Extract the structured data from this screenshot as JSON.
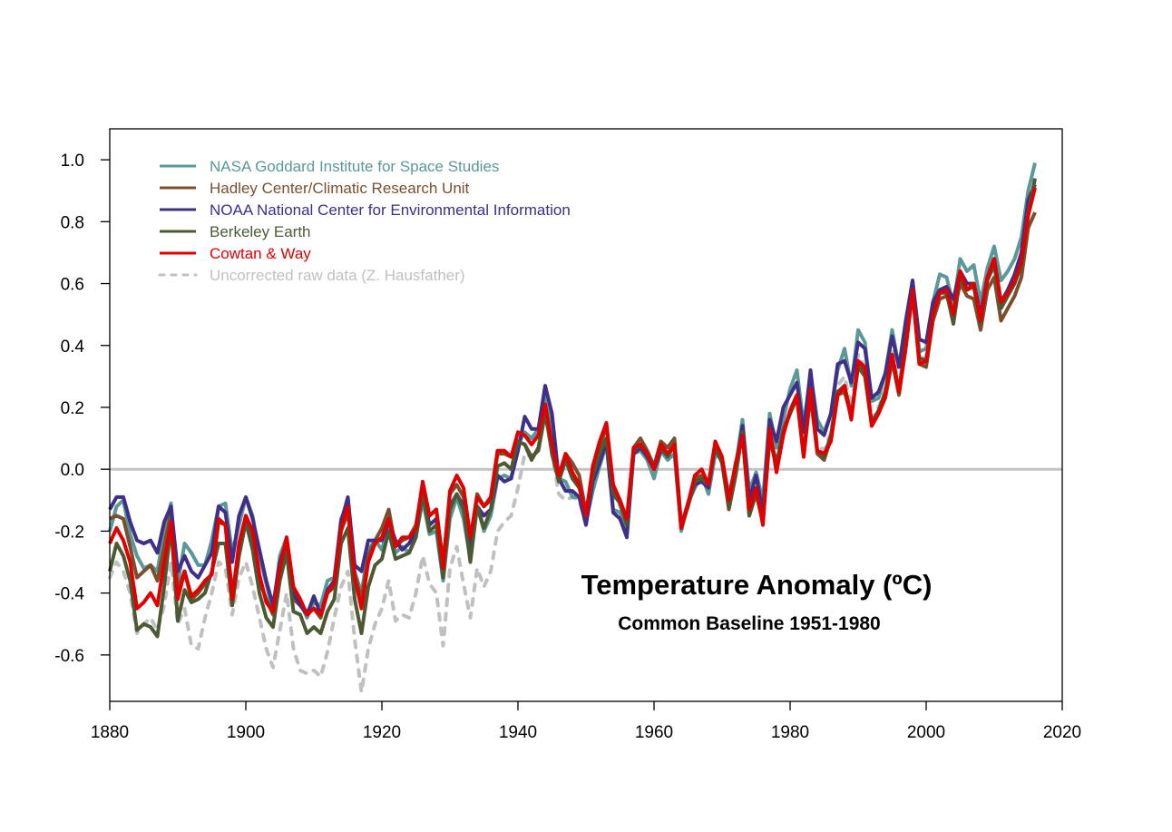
{
  "chart_data": {
    "type": "line",
    "title": "Temperature Anomaly (ºC)",
    "subtitle": "Common Baseline 1951-1980",
    "xlabel": "",
    "ylabel": "",
    "xlim": [
      1880,
      2020
    ],
    "ylim": [
      -0.75,
      1.1
    ],
    "xticks": [
      "1880",
      "1900",
      "1920",
      "1940",
      "1960",
      "1980",
      "2000",
      "2020"
    ],
    "yticks": [
      "-0.6",
      "-0.4",
      "-0.2",
      "0.0",
      "0.2",
      "0.4",
      "0.6",
      "0.8",
      "1.0"
    ],
    "grid": false,
    "reference_line": 0.0,
    "legend_placement": "top-left",
    "x_start": 1880,
    "series": [
      {
        "name": "NASA Goddard Institute for Space Studies",
        "color": "#5b9898",
        "style": "solid",
        "values": [
          -0.2,
          -0.12,
          -0.1,
          -0.21,
          -0.28,
          -0.32,
          -0.31,
          -0.33,
          -0.2,
          -0.11,
          -0.37,
          -0.24,
          -0.27,
          -0.31,
          -0.31,
          -0.23,
          -0.12,
          -0.11,
          -0.27,
          -0.18,
          -0.09,
          -0.15,
          -0.28,
          -0.37,
          -0.46,
          -0.28,
          -0.22,
          -0.39,
          -0.43,
          -0.48,
          -0.43,
          -0.44,
          -0.36,
          -0.35,
          -0.16,
          -0.11,
          -0.33,
          -0.4,
          -0.26,
          -0.23,
          -0.26,
          -0.18,
          -0.27,
          -0.25,
          -0.27,
          -0.22,
          -0.1,
          -0.21,
          -0.2,
          -0.36,
          -0.16,
          -0.09,
          -0.16,
          -0.29,
          -0.12,
          -0.2,
          -0.15,
          -0.03,
          -0.02,
          -0.03,
          0.08,
          0.12,
          0.1,
          0.13,
          0.25,
          0.12,
          -0.03,
          -0.04,
          -0.09,
          -0.09,
          -0.17,
          -0.07,
          0.01,
          0.08,
          -0.13,
          -0.14,
          -0.19,
          0.05,
          0.06,
          0.03,
          -0.03,
          0.06,
          0.03,
          0.05,
          -0.2,
          -0.11,
          -0.06,
          -0.02,
          -0.08,
          0.05,
          0.03,
          -0.08,
          0.01,
          0.16,
          -0.07,
          -0.01,
          -0.1,
          0.18,
          0.07,
          0.16,
          0.26,
          0.32,
          0.14,
          0.31,
          0.16,
          0.12,
          0.18,
          0.32,
          0.39,
          0.27,
          0.45,
          0.41,
          0.22,
          0.23,
          0.31,
          0.45,
          0.33,
          0.46,
          0.61,
          0.38,
          0.39,
          0.54,
          0.63,
          0.62,
          0.53,
          0.68,
          0.64,
          0.66,
          0.54,
          0.65,
          0.72,
          0.61,
          0.64,
          0.68,
          0.75,
          0.9,
          0.99
        ]
      },
      {
        "name": "Hadley Center/Climatic Research Unit",
        "color": "#7b4f2e",
        "style": "solid",
        "values": [
          -0.16,
          -0.15,
          -0.16,
          -0.25,
          -0.35,
          -0.33,
          -0.31,
          -0.36,
          -0.25,
          -0.14,
          -0.39,
          -0.33,
          -0.42,
          -0.4,
          -0.37,
          -0.34,
          -0.17,
          -0.18,
          -0.4,
          -0.27,
          -0.15,
          -0.22,
          -0.36,
          -0.42,
          -0.47,
          -0.33,
          -0.25,
          -0.42,
          -0.44,
          -0.46,
          -0.45,
          -0.48,
          -0.4,
          -0.38,
          -0.2,
          -0.14,
          -0.34,
          -0.42,
          -0.28,
          -0.23,
          -0.19,
          -0.13,
          -0.25,
          -0.23,
          -0.22,
          -0.18,
          -0.05,
          -0.15,
          -0.13,
          -0.3,
          -0.08,
          -0.05,
          -0.09,
          -0.23,
          -0.08,
          -0.12,
          -0.1,
          0.05,
          0.05,
          0.04,
          0.09,
          0.08,
          0.04,
          0.06,
          0.18,
          0.06,
          -0.03,
          0.05,
          0.02,
          -0.02,
          -0.14,
          -0.01,
          0.07,
          0.14,
          -0.07,
          -0.11,
          -0.17,
          0.07,
          0.1,
          0.06,
          0.01,
          0.09,
          0.07,
          0.1,
          -0.18,
          -0.11,
          -0.03,
          -0.02,
          -0.05,
          0.08,
          0.02,
          -0.13,
          -0.02,
          0.12,
          -0.15,
          -0.08,
          -0.17,
          0.1,
          0.01,
          0.13,
          0.18,
          0.23,
          0.04,
          0.24,
          0.05,
          0.03,
          0.1,
          0.24,
          0.25,
          0.17,
          0.33,
          0.3,
          0.14,
          0.18,
          0.23,
          0.35,
          0.24,
          0.39,
          0.57,
          0.34,
          0.33,
          0.48,
          0.55,
          0.56,
          0.5,
          0.6,
          0.56,
          0.55,
          0.45,
          0.58,
          0.62,
          0.48,
          0.52,
          0.56,
          0.62,
          0.78,
          0.83
        ]
      },
      {
        "name": "NOAA National Center for Environmental Information",
        "color": "#3f2f86",
        "style": "solid",
        "values": [
          -0.13,
          -0.09,
          -0.09,
          -0.17,
          -0.23,
          -0.24,
          -0.23,
          -0.27,
          -0.17,
          -0.12,
          -0.33,
          -0.28,
          -0.33,
          -0.35,
          -0.31,
          -0.27,
          -0.12,
          -0.14,
          -0.3,
          -0.15,
          -0.09,
          -0.16,
          -0.26,
          -0.36,
          -0.44,
          -0.3,
          -0.23,
          -0.4,
          -0.44,
          -0.47,
          -0.41,
          -0.47,
          -0.39,
          -0.36,
          -0.17,
          -0.09,
          -0.31,
          -0.33,
          -0.23,
          -0.23,
          -0.23,
          -0.17,
          -0.23,
          -0.26,
          -0.24,
          -0.2,
          -0.07,
          -0.18,
          -0.16,
          -0.32,
          -0.12,
          -0.08,
          -0.12,
          -0.26,
          -0.12,
          -0.15,
          -0.13,
          -0.02,
          -0.04,
          -0.03,
          0.06,
          0.17,
          0.13,
          0.13,
          0.27,
          0.18,
          -0.03,
          -0.07,
          -0.07,
          -0.09,
          -0.18,
          -0.04,
          0.02,
          0.09,
          -0.14,
          -0.16,
          -0.22,
          0.05,
          0.07,
          0.04,
          0.0,
          0.06,
          0.05,
          0.07,
          -0.19,
          -0.11,
          -0.05,
          -0.04,
          -0.06,
          0.07,
          0.03,
          -0.1,
          0.0,
          0.14,
          -0.1,
          -0.02,
          -0.14,
          0.16,
          0.09,
          0.2,
          0.24,
          0.28,
          0.12,
          0.32,
          0.13,
          0.11,
          0.18,
          0.34,
          0.35,
          0.28,
          0.41,
          0.39,
          0.23,
          0.25,
          0.31,
          0.43,
          0.33,
          0.48,
          0.61,
          0.42,
          0.41,
          0.54,
          0.58,
          0.59,
          0.55,
          0.64,
          0.6,
          0.6,
          0.5,
          0.62,
          0.68,
          0.54,
          0.58,
          0.63,
          0.7,
          0.87,
          0.92
        ]
      },
      {
        "name": "Berkeley Earth",
        "color": "#4b5a32",
        "style": "solid",
        "values": [
          -0.33,
          -0.24,
          -0.28,
          -0.36,
          -0.52,
          -0.5,
          -0.51,
          -0.54,
          -0.38,
          -0.18,
          -0.49,
          -0.39,
          -0.43,
          -0.42,
          -0.4,
          -0.33,
          -0.24,
          -0.24,
          -0.44,
          -0.28,
          -0.17,
          -0.26,
          -0.4,
          -0.48,
          -0.51,
          -0.36,
          -0.27,
          -0.46,
          -0.47,
          -0.53,
          -0.51,
          -0.53,
          -0.46,
          -0.42,
          -0.24,
          -0.19,
          -0.42,
          -0.53,
          -0.38,
          -0.31,
          -0.29,
          -0.2,
          -0.29,
          -0.28,
          -0.27,
          -0.22,
          -0.08,
          -0.2,
          -0.18,
          -0.35,
          -0.13,
          -0.08,
          -0.13,
          -0.3,
          -0.12,
          -0.19,
          -0.13,
          0.01,
          0.02,
          0.0,
          0.09,
          0.08,
          0.03,
          0.07,
          0.19,
          0.05,
          -0.04,
          0.03,
          -0.03,
          -0.06,
          -0.14,
          -0.02,
          0.05,
          0.1,
          -0.08,
          -0.11,
          -0.18,
          0.06,
          0.08,
          0.05,
          0.01,
          0.07,
          0.04,
          0.08,
          -0.19,
          -0.12,
          -0.04,
          -0.03,
          -0.05,
          0.07,
          0.02,
          -0.12,
          -0.01,
          0.12,
          -0.15,
          -0.07,
          -0.17,
          0.11,
          0.02,
          0.12,
          0.18,
          0.23,
          0.05,
          0.25,
          0.06,
          0.04,
          0.11,
          0.25,
          0.27,
          0.17,
          0.34,
          0.31,
          0.15,
          0.19,
          0.25,
          0.37,
          0.25,
          0.41,
          0.57,
          0.36,
          0.35,
          0.5,
          0.57,
          0.57,
          0.47,
          0.62,
          0.58,
          0.59,
          0.47,
          0.61,
          0.66,
          0.52,
          0.56,
          0.6,
          0.66,
          0.83,
          0.94
        ]
      },
      {
        "name": "Cowtan & Way",
        "color": "#e00000",
        "style": "solid",
        "values": [
          -0.24,
          -0.19,
          -0.23,
          -0.3,
          -0.45,
          -0.43,
          -0.4,
          -0.44,
          -0.3,
          -0.17,
          -0.42,
          -0.33,
          -0.41,
          -0.39,
          -0.36,
          -0.34,
          -0.16,
          -0.18,
          -0.42,
          -0.24,
          -0.15,
          -0.2,
          -0.34,
          -0.43,
          -0.46,
          -0.32,
          -0.22,
          -0.38,
          -0.42,
          -0.47,
          -0.45,
          -0.47,
          -0.4,
          -0.37,
          -0.19,
          -0.12,
          -0.35,
          -0.45,
          -0.3,
          -0.24,
          -0.22,
          -0.16,
          -0.25,
          -0.22,
          -0.22,
          -0.19,
          -0.04,
          -0.15,
          -0.13,
          -0.32,
          -0.07,
          -0.02,
          -0.06,
          -0.22,
          -0.09,
          -0.12,
          -0.09,
          0.06,
          0.06,
          0.04,
          0.12,
          0.11,
          0.08,
          0.11,
          0.21,
          0.08,
          -0.02,
          0.05,
          -0.01,
          -0.05,
          -0.15,
          0.01,
          0.09,
          0.15,
          -0.05,
          -0.1,
          -0.16,
          0.07,
          0.08,
          0.05,
          0.0,
          0.08,
          0.05,
          0.08,
          -0.19,
          -0.11,
          -0.02,
          0.0,
          -0.05,
          0.09,
          0.04,
          -0.1,
          0.02,
          0.11,
          -0.13,
          -0.06,
          -0.18,
          0.13,
          -0.01,
          0.11,
          0.19,
          0.24,
          0.04,
          0.26,
          0.06,
          0.05,
          0.09,
          0.24,
          0.27,
          0.16,
          0.35,
          0.33,
          0.14,
          0.18,
          0.24,
          0.37,
          0.25,
          0.4,
          0.58,
          0.34,
          0.35,
          0.5,
          0.57,
          0.58,
          0.5,
          0.64,
          0.58,
          0.6,
          0.48,
          0.62,
          0.68,
          0.54,
          0.57,
          0.61,
          0.67,
          0.82,
          0.91
        ]
      },
      {
        "name": "Uncorrected raw data (Z. Hausfather)",
        "color": "#c0c0c0",
        "style": "dashed",
        "values": [
          -0.35,
          -0.3,
          -0.33,
          -0.4,
          -0.53,
          -0.5,
          -0.48,
          -0.52,
          -0.44,
          -0.3,
          -0.5,
          -0.45,
          -0.57,
          -0.58,
          -0.48,
          -0.4,
          -0.3,
          -0.32,
          -0.47,
          -0.35,
          -0.3,
          -0.38,
          -0.48,
          -0.58,
          -0.64,
          -0.52,
          -0.4,
          -0.58,
          -0.65,
          -0.66,
          -0.65,
          -0.67,
          -0.59,
          -0.48,
          -0.38,
          -0.33,
          -0.55,
          -0.72,
          -0.58,
          -0.5,
          -0.45,
          -0.36,
          -0.49,
          -0.47,
          -0.48,
          -0.4,
          -0.28,
          -0.37,
          -0.4,
          -0.57,
          -0.32,
          -0.25,
          -0.37,
          -0.48,
          -0.32,
          -0.38,
          -0.33,
          -0.2,
          -0.17,
          -0.15,
          -0.06,
          0.05,
          0.04,
          0.06,
          0.18,
          0.05,
          -0.08,
          -0.1,
          -0.09,
          -0.1,
          -0.18,
          -0.03,
          0.04,
          0.09,
          -0.09,
          -0.12,
          -0.18,
          0.06,
          0.09,
          0.05,
          0.0,
          0.07,
          0.05,
          0.08,
          -0.19,
          -0.11,
          -0.04,
          -0.02,
          -0.05,
          0.07,
          0.02,
          -0.11,
          -0.01,
          0.12,
          -0.13,
          -0.06,
          -0.15,
          0.12,
          0.03,
          0.13,
          0.19,
          0.24,
          0.07,
          0.26,
          0.08,
          0.06,
          0.12,
          0.27,
          0.3,
          0.2,
          0.37,
          0.33,
          0.16,
          0.2,
          0.26,
          0.38,
          0.27,
          0.42,
          0.58,
          0.36,
          0.36,
          0.51,
          0.57,
          0.57,
          0.49,
          0.62,
          0.58,
          0.59,
          0.48,
          0.61,
          0.67,
          0.53,
          0.57,
          0.61,
          0.67,
          0.83,
          0.93
        ]
      }
    ]
  }
}
